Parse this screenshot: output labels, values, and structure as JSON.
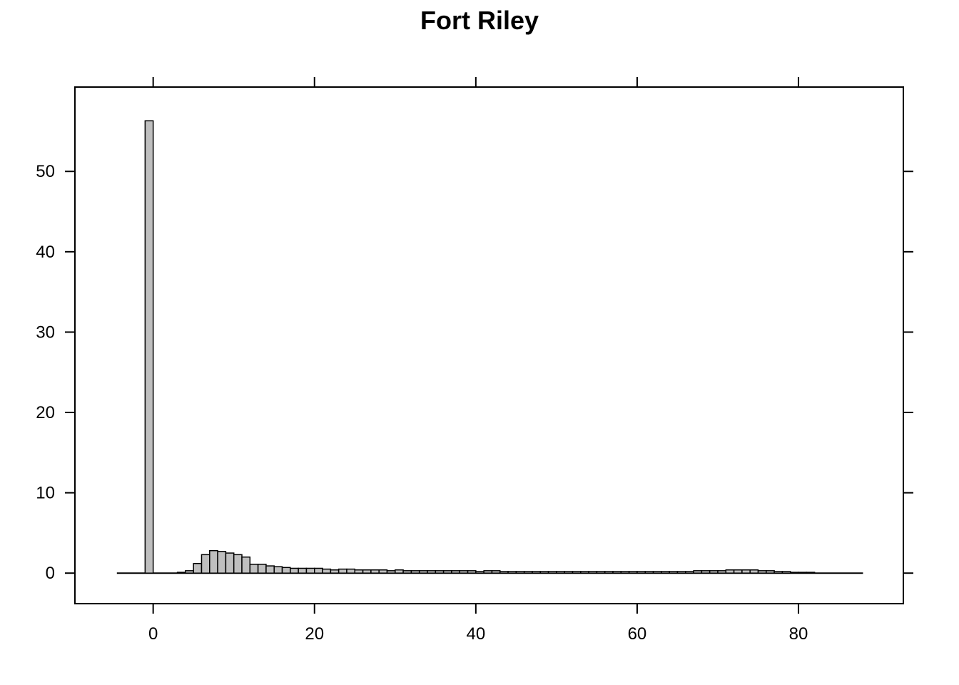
{
  "chart_data": {
    "type": "bar",
    "title": "Fort Riley",
    "xlabel": "",
    "ylabel": "",
    "xlim": [
      -9.7,
      93
    ],
    "ylim": [
      -3.8,
      60.5
    ],
    "bin_width": 1,
    "x_ticks": [
      0,
      20,
      40,
      60,
      80
    ],
    "y_ticks": [
      0,
      10,
      20,
      30,
      40,
      50
    ],
    "grid": false,
    "bar_fill": "#bfbfbf",
    "bar_stroke": "#000000",
    "bin_starts": [
      -1,
      3,
      4,
      5,
      6,
      7,
      8,
      9,
      10,
      11,
      12,
      13,
      14,
      15,
      16,
      17,
      18,
      19,
      20,
      21,
      22,
      23,
      24,
      25,
      26,
      27,
      28,
      29,
      30,
      31,
      32,
      33,
      34,
      35,
      36,
      37,
      38,
      39,
      40,
      41,
      42,
      43,
      44,
      45,
      46,
      47,
      48,
      49,
      50,
      51,
      52,
      53,
      54,
      55,
      56,
      57,
      58,
      59,
      60,
      61,
      62,
      63,
      64,
      65,
      66,
      67,
      68,
      69,
      70,
      71,
      72,
      73,
      74,
      75,
      76,
      77,
      78,
      79,
      80,
      81
    ],
    "values": [
      56.3,
      0.1,
      0.3,
      1.2,
      2.3,
      2.8,
      2.7,
      2.5,
      2.3,
      2.0,
      1.1,
      1.1,
      0.9,
      0.8,
      0.7,
      0.6,
      0.6,
      0.6,
      0.6,
      0.5,
      0.4,
      0.5,
      0.5,
      0.4,
      0.4,
      0.4,
      0.4,
      0.3,
      0.4,
      0.3,
      0.3,
      0.3,
      0.3,
      0.3,
      0.3,
      0.3,
      0.3,
      0.3,
      0.2,
      0.3,
      0.3,
      0.2,
      0.2,
      0.2,
      0.2,
      0.2,
      0.2,
      0.2,
      0.2,
      0.2,
      0.2,
      0.2,
      0.2,
      0.2,
      0.2,
      0.2,
      0.2,
      0.2,
      0.2,
      0.2,
      0.2,
      0.2,
      0.2,
      0.2,
      0.2,
      0.3,
      0.3,
      0.3,
      0.3,
      0.4,
      0.4,
      0.4,
      0.4,
      0.3,
      0.3,
      0.2,
      0.2,
      0.1,
      0.1,
      0.1
    ],
    "baseline_range": [
      -4.5,
      88
    ]
  }
}
